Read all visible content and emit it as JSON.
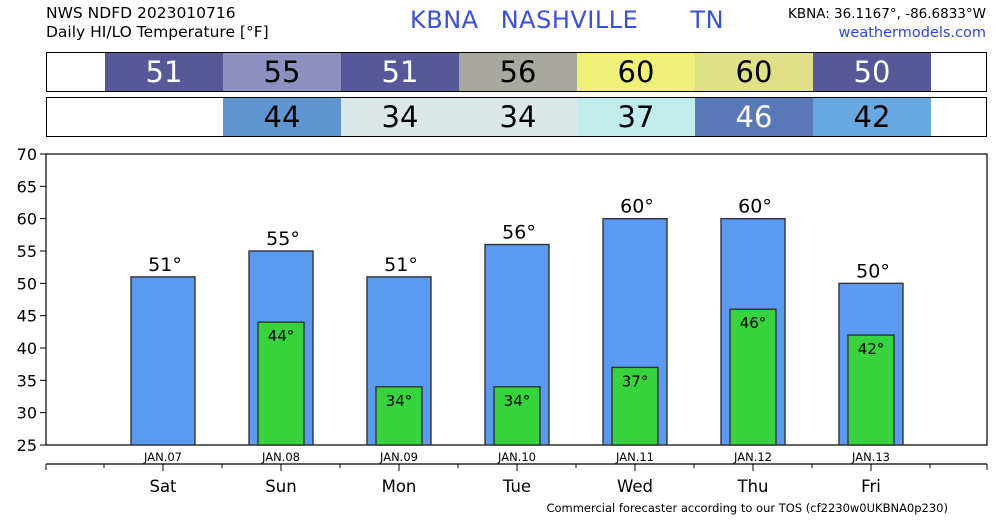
{
  "header": {
    "line1": "NWS NDFD 2023010716",
    "line2": "Daily HI/LO Temperature [°F]",
    "station": "KBNA",
    "city": "NASHVILLE",
    "state": "TN",
    "coords": "KBNA: 36.1167°, -86.6833°W",
    "site": "weathermodels.com"
  },
  "hi_strip": [
    {
      "value": "51",
      "color": "#585898",
      "text_color": "#ffffff"
    },
    {
      "value": "55",
      "color": "#9090c0",
      "text_color": "#000000"
    },
    {
      "value": "51",
      "color": "#585898",
      "text_color": "#ffffff"
    },
    {
      "value": "56",
      "color": "#a8a8a0",
      "text_color": "#000000"
    },
    {
      "value": "60",
      "color": "#f0f078",
      "text_color": "#000000"
    },
    {
      "value": "60",
      "color": "#e0e088",
      "text_color": "#000000"
    },
    {
      "value": "50",
      "color": "#585898",
      "text_color": "#ffffff"
    }
  ],
  "lo_strip": [
    {
      "value": "44",
      "color": "#6096d0",
      "text_color": "#000000"
    },
    {
      "value": "34",
      "color": "#dce8e8",
      "text_color": "#000000"
    },
    {
      "value": "34",
      "color": "#dce8e8",
      "text_color": "#000000"
    },
    {
      "value": "37",
      "color": "#c0ecec",
      "text_color": "#000000"
    },
    {
      "value": "46",
      "color": "#5a78b8",
      "text_color": "#ffffff"
    },
    {
      "value": "42",
      "color": "#68a8e0",
      "text_color": "#000000"
    }
  ],
  "chart_data": {
    "type": "bar",
    "categories": [
      "JAN.07",
      "JAN.08",
      "JAN.09",
      "JAN.10",
      "JAN.11",
      "JAN.12",
      "JAN.13"
    ],
    "days": [
      "Sat",
      "Sun",
      "Mon",
      "Tue",
      "Wed",
      "Thu",
      "Fri"
    ],
    "series": [
      {
        "values": [
          51,
          55,
          51,
          56,
          60,
          60,
          50
        ],
        "color": "#5a9af0",
        "labels": [
          "51°",
          "55°",
          "51°",
          "56°",
          "60°",
          "60°",
          "50°"
        ]
      },
      {
        "values": [
          null,
          44,
          34,
          34,
          37,
          46,
          42
        ],
        "color": "#36d33c",
        "labels": [
          "",
          "44°",
          "34°",
          "34°",
          "37°",
          "46°",
          "42°"
        ]
      }
    ],
    "yticks": [
      25,
      30,
      35,
      40,
      45,
      50,
      55,
      60,
      65,
      70
    ],
    "ylim": [
      25,
      70
    ],
    "grid": false
  },
  "footer": "Commercial forecaster according to our TOS (cf2230w0UKBNA0p230)"
}
